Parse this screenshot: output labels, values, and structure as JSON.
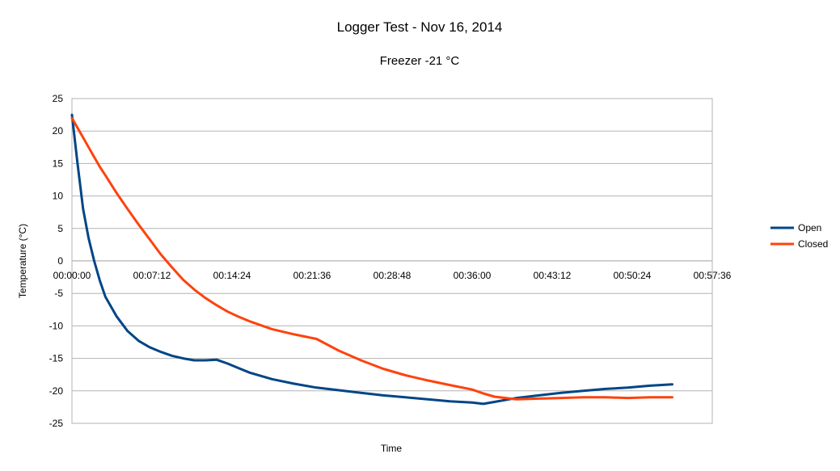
{
  "chart_data": {
    "type": "line",
    "title": "Logger Test - Nov 16, 2014",
    "subtitle": "Freezer -21 °C",
    "xlabel": "Time",
    "ylabel": "Temperature (°C)",
    "x_unit": "elapsed time (hh:mm:ss)",
    "xlim": [
      "00:00:00",
      "00:57:36"
    ],
    "ylim": [
      -25,
      25
    ],
    "x_ticks": [
      "00:00:00",
      "00:07:12",
      "00:14:24",
      "00:21:36",
      "00:28:48",
      "00:36:00",
      "00:43:12",
      "00:50:24",
      "00:57:36"
    ],
    "y_ticks": [
      25,
      20,
      15,
      10,
      5,
      0,
      -5,
      -10,
      -15,
      -20,
      -25
    ],
    "grid": "horizontal",
    "legend": "right",
    "x": [
      "00:00:00",
      "00:00:30",
      "00:01:00",
      "00:01:30",
      "00:02:00",
      "00:02:30",
      "00:03:00",
      "00:04:00",
      "00:05:00",
      "00:06:00",
      "00:07:00",
      "00:08:00",
      "00:09:00",
      "00:10:00",
      "00:11:00",
      "00:12:00",
      "00:13:00",
      "00:14:00",
      "00:15:00",
      "00:16:00",
      "00:18:00",
      "00:20:00",
      "00:22:00",
      "00:24:00",
      "00:26:00",
      "00:28:00",
      "00:30:00",
      "00:32:00",
      "00:34:00",
      "00:36:00",
      "00:37:00",
      "00:38:00",
      "00:40:00",
      "00:42:00",
      "00:44:00",
      "00:46:00",
      "00:48:00",
      "00:50:00",
      "00:52:00",
      "00:54:00"
    ],
    "series": [
      {
        "name": "Open",
        "color": "#004586",
        "values": [
          22.5,
          15,
          8,
          3.5,
          0,
          -3,
          -5.5,
          -8.5,
          -10.8,
          -12.3,
          -13.3,
          -14,
          -14.6,
          -15,
          -15.3,
          -15.3,
          -15.2,
          -15.8,
          -16.5,
          -17.2,
          -18.2,
          -18.9,
          -19.5,
          -19.9,
          -20.3,
          -20.7,
          -21,
          -21.3,
          -21.6,
          -21.8,
          -22,
          -21.7,
          -21.1,
          -20.7,
          -20.3,
          -20,
          -19.7,
          -19.5,
          -19.2,
          -19
        ]
      },
      {
        "name": "Closed",
        "color": "#ff420e",
        "values": [
          22,
          20.5,
          19,
          17.5,
          16,
          14.5,
          13.2,
          10.5,
          8,
          5.6,
          3.3,
          1,
          -1,
          -2.9,
          -4.4,
          -5.7,
          -6.8,
          -7.8,
          -8.6,
          -9.3,
          -10.5,
          -11.3,
          -12,
          -13.8,
          -15.3,
          -16.6,
          -17.6,
          -18.4,
          -19.1,
          -19.8,
          -20.4,
          -20.9,
          -21.3,
          -21.2,
          -21.1,
          -21,
          -21,
          -21.1,
          -21,
          -21
        ]
      }
    ]
  }
}
